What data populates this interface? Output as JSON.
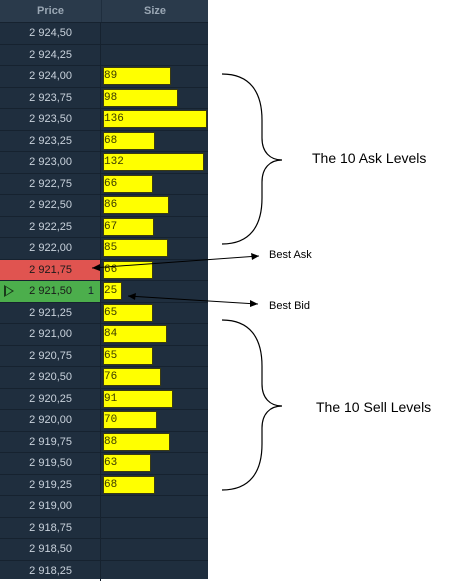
{
  "header": {
    "price": "Price",
    "size": "Size"
  },
  "rows": [
    {
      "price": "2 924,50",
      "size": ""
    },
    {
      "price": "2 924,25",
      "size": ""
    },
    {
      "price": "2 924,00",
      "size": "89"
    },
    {
      "price": "2 923,75",
      "size": "98"
    },
    {
      "price": "2 923,50",
      "size": "136"
    },
    {
      "price": "2 923,25",
      "size": "68"
    },
    {
      "price": "2 923,00",
      "size": "132"
    },
    {
      "price": "2 922,75",
      "size": "66"
    },
    {
      "price": "2 922,50",
      "size": "86"
    },
    {
      "price": "2 922,25",
      "size": "67"
    },
    {
      "price": "2 922,00",
      "size": "85"
    },
    {
      "price": "2 921,75",
      "size": "66",
      "state": "best-ask"
    },
    {
      "price": "2 921,50",
      "size": "25",
      "state": "best-bid",
      "qty": "1"
    },
    {
      "price": "2 921,25",
      "size": "65"
    },
    {
      "price": "2 921,00",
      "size": "84"
    },
    {
      "price": "2 920,75",
      "size": "65"
    },
    {
      "price": "2 920,50",
      "size": "76"
    },
    {
      "price": "2 920,25",
      "size": "91"
    },
    {
      "price": "2 920,00",
      "size": "70"
    },
    {
      "price": "2 919,75",
      "size": "88"
    },
    {
      "price": "2 919,50",
      "size": "63"
    },
    {
      "price": "2 919,25",
      "size": "68"
    },
    {
      "price": "2 919,00",
      "size": ""
    },
    {
      "price": "2 918,75",
      "size": ""
    },
    {
      "price": "2 918,50",
      "size": ""
    },
    {
      "price": "2 918,25",
      "size": ""
    }
  ],
  "annotations": {
    "ask_levels": "The 10 Ask Levels",
    "sell_levels": "The 10 Sell Levels",
    "best_ask": "Best Ask",
    "best_bid": "Best Bid"
  },
  "colors": {
    "panel_bg": "#1f2e3e",
    "size_bar": "#ffff00",
    "best_ask": "#e05450",
    "best_bid": "#4cae4c"
  }
}
